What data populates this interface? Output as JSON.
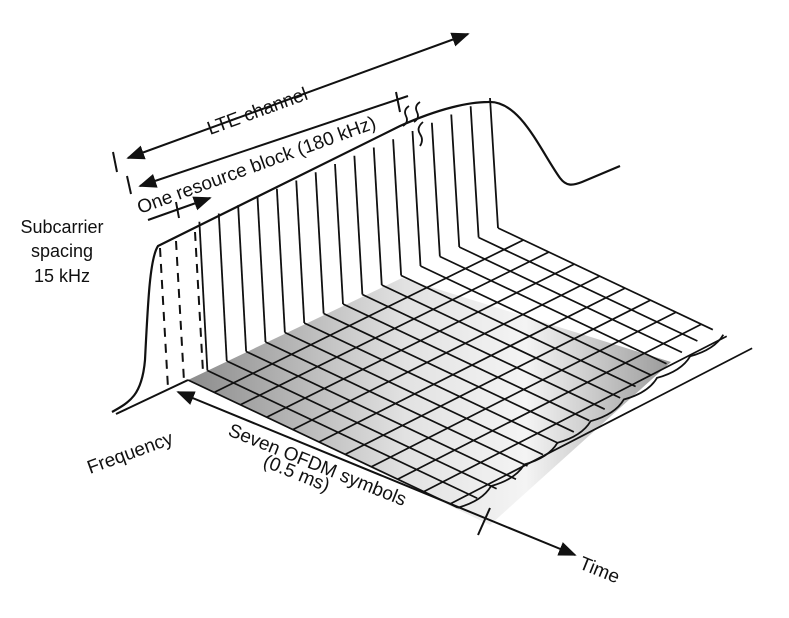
{
  "diagram": {
    "labels": {
      "lte_channel": "LTE channel",
      "resource_block": "One resource block (180 kHz)",
      "subcarrier_line1": "Subcarrier",
      "subcarrier_line2": "spacing",
      "subcarrier_line3": "15 kHz",
      "frequency": "Frequency",
      "ofdm_line1": "Seven OFDM symbols",
      "ofdm_line2": "(0.5 ms)",
      "time": "Time"
    },
    "colors": {
      "ink": "#111111",
      "resource_block_shade_dark": "#8c8c8c",
      "resource_block_shade_light": "#f2f2f2",
      "background": "#ffffff"
    }
  }
}
